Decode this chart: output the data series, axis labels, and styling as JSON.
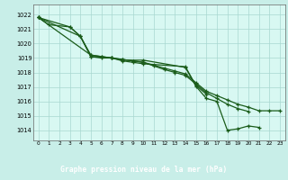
{
  "title": "Graphe pression niveau de la mer (hPa)",
  "bg_color": "#c8eee8",
  "plot_bg_color": "#d8f8f2",
  "bottom_bg_color": "#3a8a3a",
  "grid_color": "#a8d8d0",
  "line_color": "#1a5c1a",
  "ylim": [
    1013.3,
    1022.7
  ],
  "yticks": [
    1014,
    1015,
    1016,
    1017,
    1018,
    1019,
    1020,
    1021,
    1022
  ],
  "xlim": [
    -0.5,
    23.5
  ],
  "xticks": [
    0,
    1,
    2,
    3,
    4,
    5,
    6,
    7,
    8,
    9,
    10,
    11,
    12,
    13,
    14,
    15,
    16,
    17,
    18,
    19,
    20,
    21,
    22,
    23
  ],
  "line1_x": [
    0,
    1,
    3,
    4,
    5,
    7,
    8,
    10,
    14,
    15,
    16,
    17,
    18,
    19,
    20,
    21
  ],
  "line1_y": [
    1021.8,
    1021.3,
    1021.15,
    1020.5,
    1019.1,
    1019.0,
    1018.85,
    1018.85,
    1018.35,
    1017.05,
    1016.2,
    1016.0,
    1014.0,
    1014.1,
    1014.3,
    1014.2
  ],
  "line2_x": [
    0,
    3,
    4,
    5,
    6,
    7,
    8,
    9,
    10,
    14,
    15,
    16
  ],
  "line2_y": [
    1021.8,
    1021.15,
    1020.5,
    1019.1,
    1019.0,
    1019.0,
    1018.8,
    1018.7,
    1018.6,
    1018.4,
    1017.1,
    1016.5
  ],
  "line3_x": [
    0,
    4,
    5,
    6,
    7,
    8,
    9,
    10,
    11,
    12,
    13,
    14,
    15,
    16,
    17,
    18,
    19,
    20
  ],
  "line3_y": [
    1021.8,
    1020.5,
    1019.2,
    1019.1,
    1019.0,
    1018.9,
    1018.8,
    1018.7,
    1018.45,
    1018.2,
    1018.0,
    1017.8,
    1017.2,
    1016.6,
    1016.2,
    1015.8,
    1015.5,
    1015.3
  ],
  "line4_x": [
    0,
    5,
    6,
    7,
    8,
    9,
    10,
    11,
    12,
    13,
    14,
    15,
    16,
    17,
    18,
    19,
    20,
    21,
    22,
    23
  ],
  "line4_y": [
    1021.8,
    1019.2,
    1019.1,
    1019.0,
    1018.9,
    1018.8,
    1018.7,
    1018.5,
    1018.3,
    1018.1,
    1017.9,
    1017.3,
    1016.7,
    1016.4,
    1016.1,
    1015.8,
    1015.6,
    1015.35,
    1015.35,
    1015.35
  ]
}
